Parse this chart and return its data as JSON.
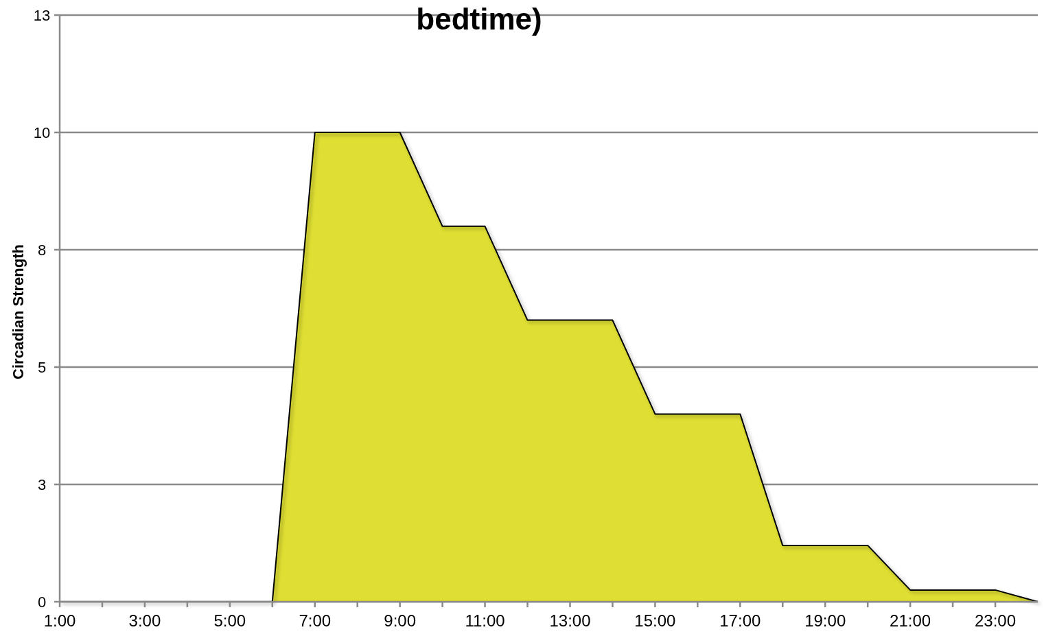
{
  "chart_data": {
    "type": "area",
    "title": "bedtime)",
    "ylabel": "Circadian Strength",
    "x": [
      1,
      2,
      3,
      4,
      5,
      6,
      7,
      8,
      9,
      10,
      11,
      12,
      13,
      14,
      15,
      16,
      17,
      18,
      19,
      20,
      21,
      22,
      23,
      24
    ],
    "series": [
      {
        "color": "#dede33",
        "values": [
          0,
          0,
          0,
          0,
          0,
          0,
          10,
          10,
          10,
          8,
          8,
          6,
          6,
          6,
          4,
          4,
          4,
          1.2,
          1.2,
          1.2,
          0.25,
          0.25,
          0.25,
          0
        ]
      }
    ],
    "xlim": [
      1,
      24
    ],
    "ylim": [
      0,
      12.5
    ],
    "xticks": [
      {
        "value": 1,
        "label": "1:00"
      },
      {
        "value": 2,
        "label": null
      },
      {
        "value": 3,
        "label": "3:00"
      },
      {
        "value": 4,
        "label": null
      },
      {
        "value": 5,
        "label": "5:00"
      },
      {
        "value": 6,
        "label": null
      },
      {
        "value": 7,
        "label": "7:00"
      },
      {
        "value": 8,
        "label": null
      },
      {
        "value": 9,
        "label": "9:00"
      },
      {
        "value": 10,
        "label": null
      },
      {
        "value": 11,
        "label": "11:00"
      },
      {
        "value": 12,
        "label": null
      },
      {
        "value": 13,
        "label": "13:00"
      },
      {
        "value": 14,
        "label": null
      },
      {
        "value": 15,
        "label": "15:00"
      },
      {
        "value": 16,
        "label": null
      },
      {
        "value": 17,
        "label": "17:00"
      },
      {
        "value": 18,
        "label": null
      },
      {
        "value": 19,
        "label": "19:00"
      },
      {
        "value": 20,
        "label": null
      },
      {
        "value": 21,
        "label": "21:00"
      },
      {
        "value": 22,
        "label": null
      },
      {
        "value": 23,
        "label": "23:00"
      }
    ],
    "yticks": [
      0,
      {
        "value": 2.5,
        "label": "3"
      },
      5,
      {
        "value": 7.5,
        "label": "8"
      },
      10,
      {
        "value": 12.5,
        "label": "13"
      }
    ],
    "grid": "y"
  }
}
